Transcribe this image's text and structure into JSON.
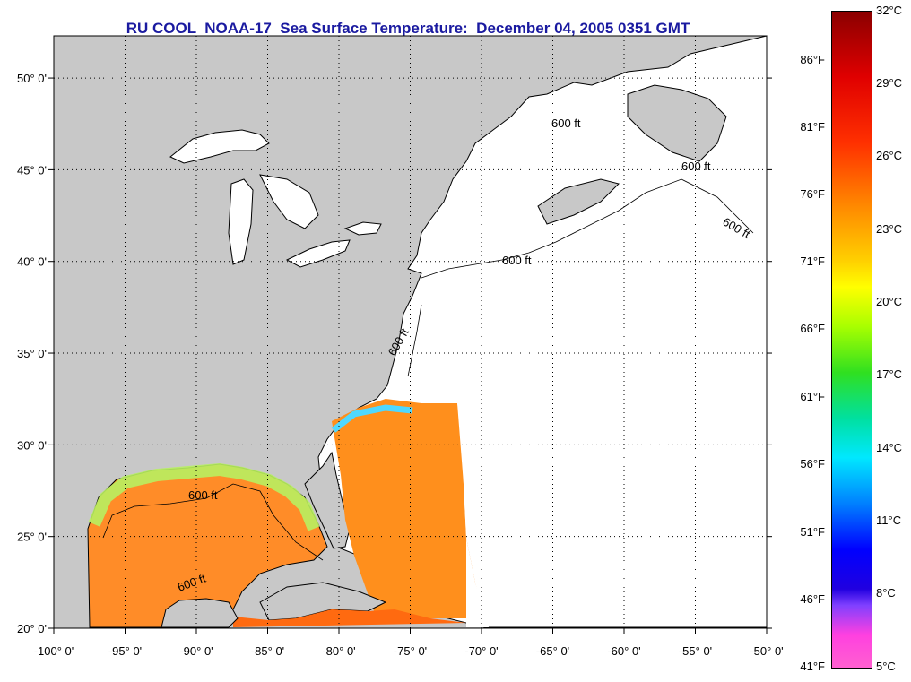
{
  "title": "RU COOL  NOAA-17  Sea Surface Temperature:  December 04, 2005 0351 GMT",
  "map": {
    "lon_range": [
      -100,
      -50
    ],
    "lat_range": [
      20,
      52.3
    ],
    "lat_ticks": [
      {
        "value": 20,
        "label": "20° 0'"
      },
      {
        "value": 25,
        "label": "25° 0'"
      },
      {
        "value": 30,
        "label": "30° 0'"
      },
      {
        "value": 35,
        "label": "35° 0'"
      },
      {
        "value": 40,
        "label": "40° 0'"
      },
      {
        "value": 45,
        "label": "45° 0'"
      },
      {
        "value": 50,
        "label": "50° 0'"
      }
    ],
    "lon_ticks": [
      {
        "value": -100,
        "label": "-100° 0'"
      },
      {
        "value": -95,
        "label": "-95° 0'"
      },
      {
        "value": -90,
        "label": "-90° 0'"
      },
      {
        "value": -85,
        "label": "-85° 0'"
      },
      {
        "value": -80,
        "label": "-80° 0'"
      },
      {
        "value": -75,
        "label": "-75° 0'"
      },
      {
        "value": -70,
        "label": "-70° 0'"
      },
      {
        "value": -65,
        "label": "-65° 0'"
      },
      {
        "value": -60,
        "label": "-60° 0'"
      },
      {
        "value": -55,
        "label": "-55° 0'"
      },
      {
        "value": -50,
        "label": "-50° 0'"
      }
    ],
    "isobath_label": "600 ft",
    "land_color": "#c8c8c8",
    "water_color": "#ffffff"
  },
  "colorbar": {
    "fahrenheit_labels": [
      "86°F",
      "81°F",
      "76°F",
      "71°F",
      "66°F",
      "61°F",
      "56°F",
      "51°F",
      "46°F",
      "41°F"
    ],
    "celsius_labels": [
      "32°C",
      "29°C",
      "26°C",
      "23°C",
      "20°C",
      "17°C",
      "14°C",
      "11°C",
      "8°C",
      "5°C"
    ]
  }
}
